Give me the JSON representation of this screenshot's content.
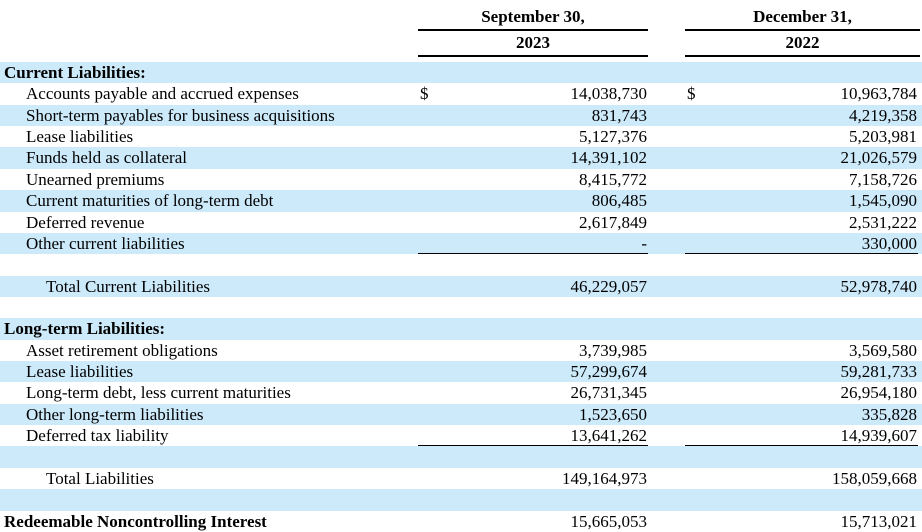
{
  "document": {
    "title": "Liabilities section of consolidated balance sheet",
    "columns": [
      {
        "month_line": "September 30,",
        "year_line": "2023"
      },
      {
        "month_line": "December 31,",
        "year_line": "2022"
      }
    ],
    "rows": [
      {
        "type": "section",
        "bg": "stripe",
        "label": "Current Liabilities:"
      },
      {
        "type": "item",
        "bg": "white",
        "label": "Accounts payable and accrued expenses",
        "d1": "$",
        "v1": "14,038,730",
        "d2": "$",
        "v2": "10,963,784"
      },
      {
        "type": "item",
        "bg": "stripe",
        "label": "Short-term payables for business acquisitions",
        "v1": "831,743",
        "v2": "4,219,358"
      },
      {
        "type": "item",
        "bg": "white",
        "label": "Lease liabilities",
        "v1": "5,127,376",
        "v2": "5,203,981"
      },
      {
        "type": "item",
        "bg": "stripe",
        "label": "Funds held as collateral",
        "v1": "14,391,102",
        "v2": "21,026,579"
      },
      {
        "type": "item",
        "bg": "white",
        "label": "Unearned premiums",
        "v1": "8,415,772",
        "v2": "7,158,726"
      },
      {
        "type": "item",
        "bg": "stripe",
        "label": "Current maturities of long-term debt",
        "v1": "806,485",
        "v2": "1,545,090"
      },
      {
        "type": "item",
        "bg": "white",
        "label": "Deferred revenue",
        "v1": "2,617,849",
        "v2": "2,531,222"
      },
      {
        "type": "item",
        "bg": "stripe",
        "label": "Other current liabilities",
        "v1": "-",
        "v2": "330,000",
        "underline": true
      },
      {
        "type": "spacer",
        "bg": "white"
      },
      {
        "type": "total",
        "bg": "stripe",
        "label": "Total Current Liabilities",
        "v1": "46,229,057",
        "v2": "52,978,740"
      },
      {
        "type": "spacer",
        "bg": "white"
      },
      {
        "type": "section",
        "bg": "stripe",
        "label": "Long-term Liabilities:"
      },
      {
        "type": "item",
        "bg": "white",
        "label": "Asset retirement obligations",
        "v1": "3,739,985",
        "v2": "3,569,580"
      },
      {
        "type": "item",
        "bg": "stripe",
        "label": "Lease liabilities",
        "v1": "57,299,674",
        "v2": "59,281,733"
      },
      {
        "type": "item",
        "bg": "white",
        "label": "Long-term debt, less current maturities",
        "v1": "26,731,345",
        "v2": "26,954,180"
      },
      {
        "type": "item",
        "bg": "stripe",
        "label": "Other long-term liabilities",
        "v1": "1,523,650",
        "v2": "335,828"
      },
      {
        "type": "item",
        "bg": "white",
        "label": "Deferred tax liability",
        "v1": "13,641,262",
        "v2": "14,939,607",
        "underline": true
      },
      {
        "type": "spacer",
        "bg": "stripe"
      },
      {
        "type": "total",
        "bg": "white",
        "label": "Total Liabilities",
        "v1": "149,164,973",
        "v2": "158,059,668"
      },
      {
        "type": "spacer",
        "bg": "stripe"
      },
      {
        "type": "bolditem",
        "bg": "white",
        "label": "Redeemable Noncontrolling Interest",
        "v1": "15,665,053",
        "v2": "15,713,021"
      }
    ]
  },
  "colors": {
    "stripe": "#cdeafa",
    "rule": "#000000",
    "text": "#000000",
    "background": "#ffffff"
  }
}
